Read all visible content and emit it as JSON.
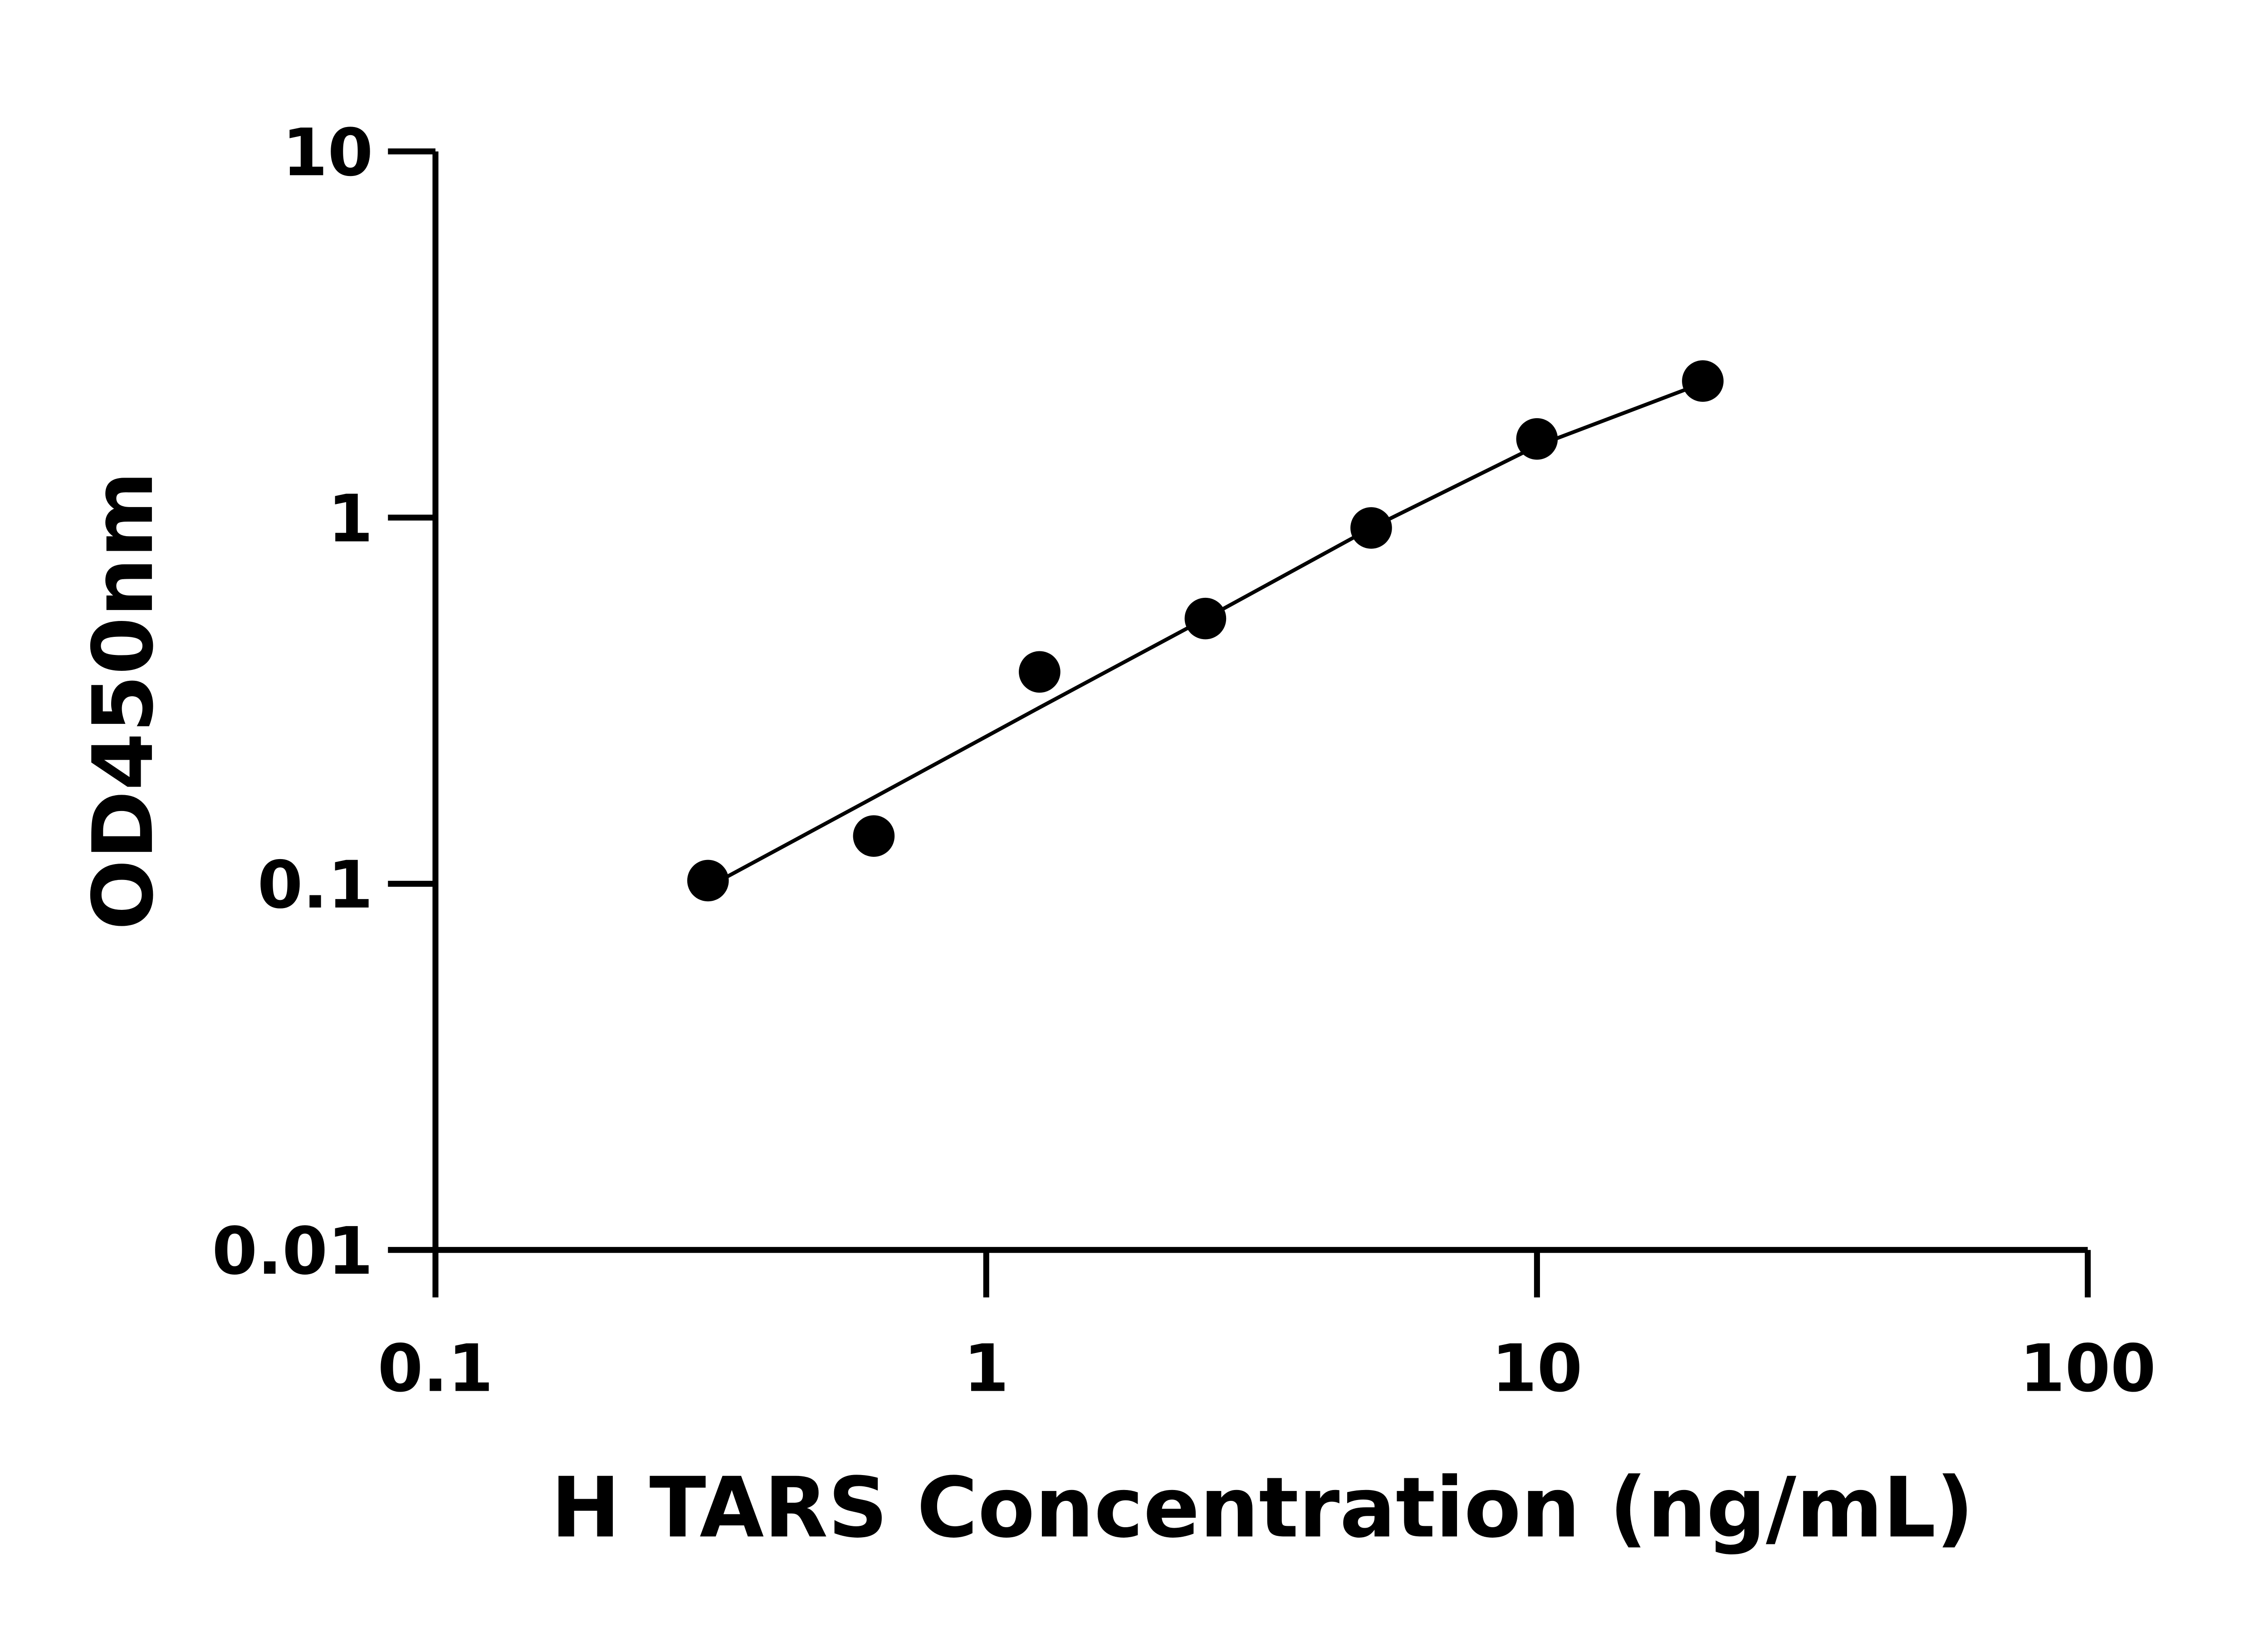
{
  "chart_data": {
    "type": "scatter",
    "title": "",
    "xlabel": "H TARS Concentration (ng/mL)",
    "ylabel": "OD450nm",
    "xscale": "log",
    "yscale": "log",
    "xlim": [
      0.1,
      100
    ],
    "ylim": [
      0.01,
      10
    ],
    "xticks": [
      "0.1",
      "1",
      "10",
      "100"
    ],
    "yticks": [
      "0.01",
      "0.1",
      "1",
      "10"
    ],
    "grid": false,
    "legend": "none",
    "series": [
      {
        "type": "scatter",
        "x": [
          0.3125,
          0.625,
          1.25,
          2.5,
          5,
          10,
          20
        ],
        "values": [
          0.102,
          0.135,
          0.379,
          0.53,
          0.937,
          1.64,
          2.36
        ],
        "color": "#000000"
      },
      {
        "type": "line",
        "x": [
          0.3125,
          0.625,
          1.25,
          2.5,
          5,
          10,
          20
        ],
        "values": [
          0.098,
          0.172,
          0.303,
          0.53,
          0.937,
          1.57,
          2.33
        ],
        "color": "#000000"
      }
    ]
  }
}
